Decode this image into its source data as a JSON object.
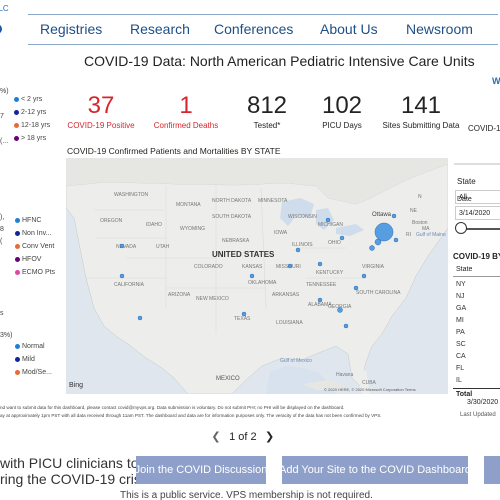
{
  "nav": {
    "brand": "LLC",
    "links": [
      "Registries",
      "Research",
      "Conferences",
      "About Us",
      "Newsroom"
    ]
  },
  "report": {
    "title": "COVID-19 Data: North American Pediatric Intensive Care Units",
    "right_logo_fragment": "W"
  },
  "left_panel": {
    "age_pct": "%)",
    "age_legend": [
      "< 2 yrs",
      "2-12 yrs",
      "12-18 yrs",
      "> 18 yrs"
    ],
    "age_nums": [
      "7",
      "(..."
    ],
    "support_nums": [
      "),",
      "8",
      "("
    ],
    "support_legend": [
      "HFNC",
      "Non Inv...",
      "Conv Vent",
      "HFOV",
      "ECMO Pts"
    ],
    "severity_label": "s",
    "severity_pct": "3%)",
    "severity_legend": [
      "Normal",
      "Mild",
      "Mod/Se..."
    ],
    "colors": {
      "blue1": "#1f7fd6",
      "blue2": "#12239e",
      "orange": "#e66c37",
      "purple": "#6b007b",
      "pink": "#e044a7"
    }
  },
  "kpis": [
    {
      "value": "37",
      "label": "COVID-19 Positive",
      "red": true
    },
    {
      "value": "1",
      "label": "Confirmed Deaths",
      "red": true
    },
    {
      "value": "812",
      "label": "Tested*",
      "red": false
    },
    {
      "value": "102",
      "label": "PICU Days",
      "red": false
    },
    {
      "value": "141",
      "label": "Sites Submitting Data",
      "red": false
    }
  ],
  "kpi_overflow": "COVID-1",
  "map": {
    "title": "COVID-19 Confirmed Patients and Mortalities BY STATE",
    "labels": {
      "washington": "WASHINGTON",
      "montana": "MONTANA",
      "north_dakota": "NORTH DAKOTA",
      "minnesota": "MINNESOTA",
      "oregon": "OREGON",
      "idaho": "IDAHO",
      "south_dakota": "SOUTH DAKOTA",
      "wisconsin": "WISCONSIN",
      "wyoming": "WYOMING",
      "michigan": "MICHIGAN",
      "iowa": "IOWA",
      "nebraska": "NEBRASKA",
      "illinois": "ILLINOIS",
      "ohio": "OHIO",
      "nevada": "NEVADA",
      "utah": "UTAH",
      "country": "UNITED STATES",
      "colorado": "COLORADO",
      "kansas": "KANSAS",
      "missouri": "MISSOURI",
      "kentucky": "KENTUCKY",
      "virginia": "VIRGINIA",
      "california": "CALIFORNIA",
      "tennessee": "TENNESSEE",
      "oklahoma": "OKLAHOMA",
      "arizona": "ARIZONA",
      "new_mexico": "NEW MEXICO",
      "arkansas": "ARKANSAS",
      "south_carolina": "SOUTH CAROLINA",
      "georgia": "GEORGIA",
      "alabama": "ALABAMA",
      "texas": "TEXAS",
      "louisiana": "LOUISIANA",
      "ottawa": "Ottawa",
      "boston": "Boston",
      "gulf_maine": "Gulf of Maine",
      "gulf_mexico": "Gulf of Mexico",
      "mexico": "MEXICO",
      "cuba": "CUBA",
      "havana": "Havana",
      "n": "N",
      "ne": "NE",
      "ma": "MA",
      "ri": "RI"
    },
    "bing": "Bing",
    "copyright": "© 2020 HERE, © 2020 Microsoft Corporation Terms",
    "bubble_color": "#3c8ee0"
  },
  "right_panel": {
    "state_label": "State",
    "state_value": "All",
    "date_label": "Date",
    "date_start": "3/14/2020",
    "by_state_title": "COVID-19 BY",
    "table_header": "State",
    "states": [
      "NY",
      "NJ",
      "GA",
      "MI",
      "PA",
      "SC",
      "CA",
      "FL",
      "IL"
    ],
    "total_label": "Total",
    "date_end": "3/30/2020",
    "last_updated": "Last Updated"
  },
  "footer": {
    "line1": "nd want to submit data for this dashboard, please contact covid@myvps.org. Data submission is voluntary. Do not submit PHI; no PHI will be displayed on the dashboard.",
    "line2": "ay at approximately 1pm PST with all data received through 11am PST. The dashboard and data are for information purposes only. The veracity of the data has not been confirmed by VPS."
  },
  "pager": {
    "page_label": "1 of 2",
    "prev": "❮",
    "next": "❯"
  },
  "cta": {
    "line1": "with PICU clinicians to",
    "line2": "ring the COVID-19 crisis?",
    "join_button": "Join the COVID Discussion",
    "add_button": "Add Your Site to the COVID Dashboard",
    "note": "This is a public service. VPS membership is not required."
  }
}
